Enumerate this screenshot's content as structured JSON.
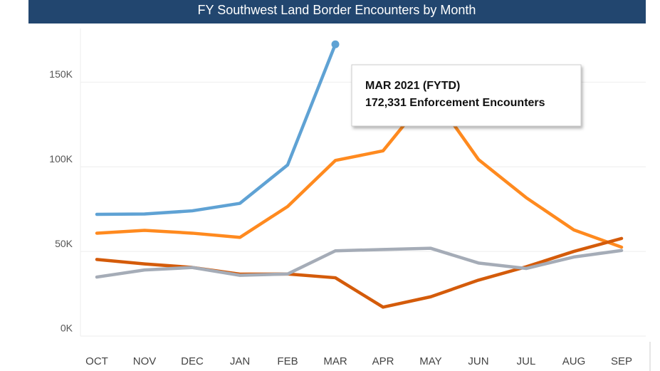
{
  "chart_data": {
    "type": "line",
    "title": "FY Southwest Land Border Encounters by Month",
    "categories": [
      "OCT",
      "NOV",
      "DEC",
      "JAN",
      "FEB",
      "MAR",
      "APR",
      "MAY",
      "JUN",
      "JUL",
      "AUG",
      "SEP"
    ],
    "series": [
      {
        "color": "#ff8a1f",
        "values": [
          60782,
          62469,
          60794,
          58317,
          76545,
          103731,
          109415,
          144116,
          104311,
          81777,
          62707,
          52546
        ]
      },
      {
        "color": "#d45b0a",
        "values": [
          45250,
          42643,
          40565,
          36585,
          36687,
          34460,
          17106,
          23237,
          33049,
          40929,
          50014,
          57674
        ]
      },
      {
        "color": "#a5acb7",
        "values": [
          34871,
          39051,
          40519,
          35905,
          36695,
          50347,
          51168,
          51862,
          43180,
          39953,
          46719,
          50568
        ]
      },
      {
        "color": "#5fa2d4",
        "values": [
          71929,
          72113,
          73994,
          78414,
          101099,
          172331,
          null,
          null,
          null,
          null,
          null,
          null
        ]
      }
    ],
    "ylim": [
      0,
      180000
    ],
    "yticks": [
      {
        "value": 0,
        "label": "0K"
      },
      {
        "value": 50000,
        "label": "50K"
      },
      {
        "value": 100000,
        "label": "100K"
      },
      {
        "value": 150000,
        "label": "150K"
      }
    ],
    "grid": true,
    "annotation": {
      "title": "MAR 2021 (FYTD)",
      "text": "172,331 Enforcement Encounters"
    }
  }
}
